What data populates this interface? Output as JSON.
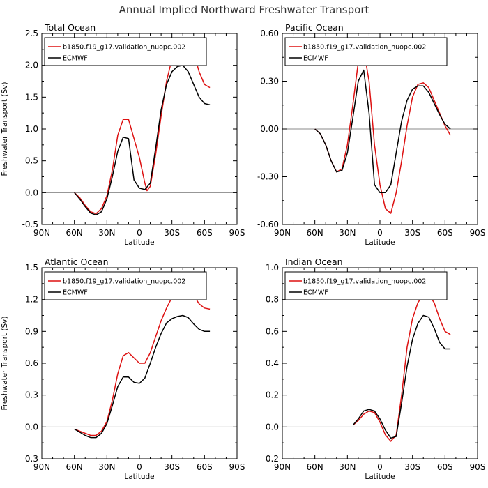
{
  "figure_title": "Annual Implied Northward Freshwater Transport",
  "colors": {
    "model": "#dd1111",
    "obs": "#000000",
    "zero_line": "#888888"
  },
  "chart_data": [
    {
      "type": "line",
      "title": "Total Ocean",
      "xlabel": "Latitude",
      "ylabel": "Freshwater Transport (Sv)",
      "xlim": [
        90,
        -90
      ],
      "ylim": [
        -0.5,
        2.5
      ],
      "xticks": [
        90,
        60,
        30,
        0,
        -30,
        -60,
        -90
      ],
      "xticklabels": [
        "90N",
        "60N",
        "30N",
        "0",
        "30S",
        "60S",
        "90S"
      ],
      "yticks": [
        -0.5,
        0.0,
        0.5,
        1.0,
        1.5,
        2.0,
        2.5
      ],
      "yticklabels": [
        "-0.5",
        "0.0",
        "0.5",
        "1.0",
        "1.5",
        "2.0",
        "2.5"
      ],
      "legend_position": "top",
      "series": [
        {
          "name": "b1850.f19_g17.validation_nuopc.002",
          "color": "#dd1111",
          "x": [
            60,
            55,
            50,
            45,
            40,
            35,
            30,
            25,
            20,
            15,
            10,
            5,
            0,
            -5,
            -7,
            -10,
            -15,
            -20,
            -25,
            -30,
            -35,
            -40,
            -45,
            -50,
            -55,
            -60,
            -65
          ],
          "y": [
            0.0,
            -0.08,
            -0.2,
            -0.3,
            -0.33,
            -0.25,
            -0.05,
            0.35,
            0.9,
            1.15,
            1.15,
            0.85,
            0.55,
            0.15,
            0.03,
            0.1,
            0.6,
            1.2,
            1.75,
            2.1,
            2.3,
            2.42,
            2.4,
            2.2,
            1.9,
            1.7,
            1.65
          ]
        },
        {
          "name": "ECMWF",
          "color": "#000000",
          "x": [
            60,
            55,
            50,
            45,
            40,
            35,
            30,
            25,
            20,
            15,
            10,
            5,
            0,
            -5,
            -10,
            -15,
            -20,
            -25,
            -30,
            -35,
            -40,
            -45,
            -50,
            -55,
            -60,
            -65
          ],
          "y": [
            0.0,
            -0.1,
            -0.22,
            -0.32,
            -0.35,
            -0.3,
            -0.1,
            0.25,
            0.65,
            0.87,
            0.85,
            0.2,
            0.07,
            0.05,
            0.15,
            0.7,
            1.3,
            1.7,
            1.9,
            1.98,
            2.0,
            1.9,
            1.7,
            1.5,
            1.4,
            1.38
          ]
        }
      ]
    },
    {
      "type": "line",
      "title": "Pacific Ocean",
      "xlabel": "Latitude",
      "ylabel": "",
      "xlim": [
        90,
        -90
      ],
      "ylim": [
        -0.6,
        0.6
      ],
      "xticks": [
        90,
        60,
        30,
        0,
        -30,
        -60,
        -90
      ],
      "xticklabels": [
        "90N",
        "60N",
        "30N",
        "0",
        "30S",
        "60S",
        "90S"
      ],
      "yticks": [
        -0.6,
        -0.3,
        0.0,
        0.3,
        0.6
      ],
      "yticklabels": [
        "-0.60",
        "-0.30",
        "0.00",
        "0.30",
        "0.60"
      ],
      "legend_position": "top",
      "series": [
        {
          "name": "b1850.f19_g17.validation_nuopc.002",
          "color": "#dd1111",
          "x": [
            60,
            55,
            50,
            45,
            40,
            35,
            30,
            25,
            20,
            15,
            10,
            5,
            0,
            -5,
            -10,
            -15,
            -20,
            -25,
            -30,
            -35,
            -40,
            -45,
            -50,
            -55,
            -60,
            -65
          ],
          "y": [
            0.0,
            -0.03,
            -0.1,
            -0.2,
            -0.27,
            -0.25,
            -0.1,
            0.15,
            0.42,
            0.5,
            0.3,
            -0.1,
            -0.35,
            -0.5,
            -0.53,
            -0.4,
            -0.2,
            0.02,
            0.2,
            0.28,
            0.29,
            0.26,
            0.18,
            0.1,
            0.02,
            -0.04
          ]
        },
        {
          "name": "ECMWF",
          "color": "#000000",
          "x": [
            60,
            55,
            50,
            45,
            40,
            35,
            30,
            25,
            20,
            15,
            10,
            5,
            0,
            -5,
            -10,
            -15,
            -20,
            -25,
            -30,
            -35,
            -40,
            -45,
            -50,
            -55,
            -60,
            -65
          ],
          "y": [
            0.0,
            -0.03,
            -0.1,
            -0.2,
            -0.27,
            -0.26,
            -0.15,
            0.07,
            0.3,
            0.37,
            0.1,
            -0.35,
            -0.4,
            -0.4,
            -0.35,
            -0.15,
            0.05,
            0.18,
            0.25,
            0.27,
            0.27,
            0.23,
            0.16,
            0.09,
            0.03,
            0.0
          ]
        }
      ]
    },
    {
      "type": "line",
      "title": "Atlantic Ocean",
      "xlabel": "Latitude",
      "ylabel": "Freshwater Transport (Sv)",
      "xlim": [
        90,
        -90
      ],
      "ylim": [
        -0.3,
        1.5
      ],
      "xticks": [
        90,
        60,
        30,
        0,
        -30,
        -60,
        -90
      ],
      "xticklabels": [
        "90N",
        "60N",
        "30N",
        "0",
        "30S",
        "60S",
        "90S"
      ],
      "yticks": [
        -0.3,
        0.0,
        0.3,
        0.6,
        0.9,
        1.2,
        1.5
      ],
      "yticklabels": [
        "-0.3",
        "0.0",
        "0.3",
        "0.6",
        "0.9",
        "1.2",
        "1.5"
      ],
      "legend_position": "top",
      "series": [
        {
          "name": "b1850.f19_g17.validation_nuopc.002",
          "color": "#dd1111",
          "x": [
            60,
            55,
            50,
            45,
            40,
            35,
            30,
            25,
            20,
            15,
            10,
            5,
            0,
            -5,
            -10,
            -15,
            -20,
            -25,
            -30,
            -35,
            -40,
            -45,
            -50,
            -55,
            -60,
            -65
          ],
          "y": [
            -0.02,
            -0.04,
            -0.06,
            -0.08,
            -0.08,
            -0.04,
            0.05,
            0.25,
            0.5,
            0.67,
            0.7,
            0.65,
            0.6,
            0.6,
            0.7,
            0.85,
            1.0,
            1.12,
            1.22,
            1.28,
            1.31,
            1.3,
            1.24,
            1.16,
            1.12,
            1.11
          ]
        },
        {
          "name": "ECMWF",
          "color": "#000000",
          "x": [
            60,
            55,
            50,
            45,
            40,
            35,
            30,
            25,
            20,
            15,
            10,
            5,
            0,
            -5,
            -10,
            -15,
            -20,
            -25,
            -30,
            -35,
            -40,
            -45,
            -50,
            -55,
            -60,
            -65
          ],
          "y": [
            -0.02,
            -0.05,
            -0.08,
            -0.1,
            -0.1,
            -0.06,
            0.03,
            0.2,
            0.38,
            0.47,
            0.47,
            0.42,
            0.41,
            0.46,
            0.6,
            0.75,
            0.88,
            0.98,
            1.02,
            1.04,
            1.05,
            1.03,
            0.97,
            0.92,
            0.9,
            0.9
          ]
        }
      ]
    },
    {
      "type": "line",
      "title": "Indian Ocean",
      "xlabel": "Latitude",
      "ylabel": "",
      "xlim": [
        90,
        -90
      ],
      "ylim": [
        -0.2,
        1.0
      ],
      "xticks": [
        90,
        60,
        30,
        0,
        -30,
        -60,
        -90
      ],
      "xticklabels": [
        "90N",
        "60N",
        "30N",
        "0",
        "30S",
        "60S",
        "90S"
      ],
      "yticks": [
        -0.2,
        0.0,
        0.2,
        0.4,
        0.6,
        0.8,
        1.0
      ],
      "yticklabels": [
        "-0.2",
        "0.0",
        "0.2",
        "0.4",
        "0.6",
        "0.8",
        "1.0"
      ],
      "legend_position": "top",
      "series": [
        {
          "name": "b1850.f19_g17.validation_nuopc.002",
          "color": "#dd1111",
          "x": [
            25,
            20,
            15,
            10,
            5,
            0,
            -5,
            -10,
            -15,
            -20,
            -25,
            -30,
            -35,
            -40,
            -45,
            -50,
            -55,
            -60,
            -65
          ],
          "y": [
            0.01,
            0.04,
            0.08,
            0.1,
            0.09,
            0.03,
            -0.05,
            -0.09,
            -0.05,
            0.2,
            0.5,
            0.68,
            0.78,
            0.83,
            0.83,
            0.78,
            0.68,
            0.6,
            0.58
          ]
        },
        {
          "name": "ECMWF",
          "color": "#000000",
          "x": [
            25,
            20,
            15,
            10,
            5,
            0,
            -5,
            -10,
            -15,
            -20,
            -25,
            -30,
            -35,
            -40,
            -45,
            -50,
            -55,
            -60,
            -65
          ],
          "y": [
            0.01,
            0.05,
            0.1,
            0.11,
            0.1,
            0.05,
            -0.02,
            -0.07,
            -0.06,
            0.15,
            0.38,
            0.55,
            0.65,
            0.7,
            0.69,
            0.62,
            0.53,
            0.49,
            0.49
          ]
        }
      ]
    }
  ]
}
